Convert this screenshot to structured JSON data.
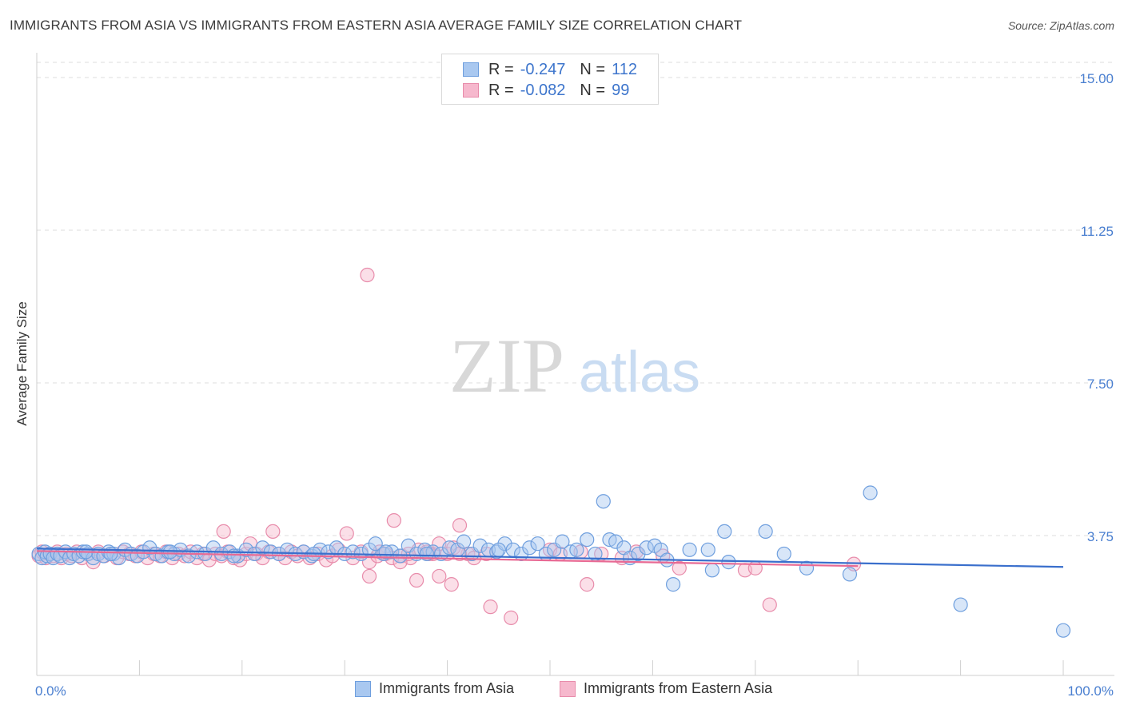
{
  "title": "IMMIGRANTS FROM ASIA VS IMMIGRANTS FROM EASTERN ASIA AVERAGE FAMILY SIZE CORRELATION CHART",
  "source": "Source: ZipAtlas.com",
  "watermark": {
    "zip": "ZIP",
    "atlas": "atlas"
  },
  "colors": {
    "blue_fill": "#a9c8f0",
    "blue_stroke": "#6f9fde",
    "blue_line": "#3a6fcc",
    "pink_fill": "#f6b8cd",
    "pink_stroke": "#e88cab",
    "pink_line": "#e86a94",
    "axis_text": "#4a7fd0",
    "grid": "#dcdcdc"
  },
  "legend": {
    "series1": {
      "r_label": "R =",
      "r_value": "-0.247",
      "n_label": "N =",
      "n_value": "112"
    },
    "series2": {
      "r_label": "R =",
      "r_value": "-0.082",
      "n_label": "N =",
      "n_value": "99"
    }
  },
  "chart_data": {
    "type": "scatter",
    "title": "IMMIGRANTS FROM ASIA VS IMMIGRANTS FROM EASTERN ASIA AVERAGE FAMILY SIZE CORRELATION CHART",
    "xlabel": "",
    "ylabel": "Average Family Size",
    "xlim": [
      0,
      100
    ],
    "ylim": [
      0,
      15.75
    ],
    "y_ticks": [
      3.75,
      7.5,
      11.25,
      15.0
    ],
    "y_tick_labels": [
      "3.75",
      "7.50",
      "11.25",
      "15.00"
    ],
    "x_tick_labels": [
      "0.0%",
      "100.0%"
    ],
    "grid": true,
    "legend_position": "top-center",
    "series": [
      {
        "name": "Immigrants from Asia",
        "color": "blue",
        "trend": {
          "x": [
            0,
            100
          ],
          "y": [
            3.43,
            2.98
          ]
        },
        "points": [
          [
            0.2,
            3.3
          ],
          [
            0.5,
            3.2
          ],
          [
            0.8,
            3.35
          ],
          [
            1.0,
            3.25
          ],
          [
            1.3,
            3.3
          ],
          [
            1.6,
            3.2
          ],
          [
            2.0,
            3.3
          ],
          [
            2.3,
            3.25
          ],
          [
            2.8,
            3.35
          ],
          [
            3.2,
            3.2
          ],
          [
            3.6,
            3.3
          ],
          [
            4.1,
            3.25
          ],
          [
            4.5,
            3.35
          ],
          [
            5.0,
            3.3
          ],
          [
            5.5,
            3.2
          ],
          [
            6.0,
            3.3
          ],
          [
            6.5,
            3.25
          ],
          [
            7.0,
            3.35
          ],
          [
            7.5,
            3.3
          ],
          [
            8.0,
            3.2
          ],
          [
            8.6,
            3.4
          ],
          [
            9.2,
            3.3
          ],
          [
            9.8,
            3.25
          ],
          [
            10.4,
            3.35
          ],
          [
            11.0,
            3.45
          ],
          [
            11.6,
            3.3
          ],
          [
            12.2,
            3.25
          ],
          [
            12.8,
            3.35
          ],
          [
            13.4,
            3.3
          ],
          [
            14.0,
            3.4
          ],
          [
            14.8,
            3.25
          ],
          [
            15.6,
            3.35
          ],
          [
            16.4,
            3.3
          ],
          [
            17.2,
            3.45
          ],
          [
            18.0,
            3.3
          ],
          [
            18.8,
            3.35
          ],
          [
            19.6,
            3.25
          ],
          [
            20.4,
            3.4
          ],
          [
            21.2,
            3.3
          ],
          [
            22.0,
            3.45
          ],
          [
            22.8,
            3.35
          ],
          [
            23.6,
            3.3
          ],
          [
            24.4,
            3.4
          ],
          [
            25.2,
            3.3
          ],
          [
            26.0,
            3.35
          ],
          [
            26.8,
            3.25
          ],
          [
            27.6,
            3.4
          ],
          [
            28.4,
            3.35
          ],
          [
            29.2,
            3.45
          ],
          [
            30.0,
            3.3
          ],
          [
            30.8,
            3.35
          ],
          [
            31.6,
            3.3
          ],
          [
            32.4,
            3.4
          ],
          [
            33.0,
            3.55
          ],
          [
            33.8,
            3.3
          ],
          [
            34.6,
            3.35
          ],
          [
            35.4,
            3.25
          ],
          [
            36.2,
            3.5
          ],
          [
            37.0,
            3.3
          ],
          [
            37.8,
            3.4
          ],
          [
            38.6,
            3.35
          ],
          [
            39.4,
            3.3
          ],
          [
            40.2,
            3.45
          ],
          [
            41.0,
            3.4
          ],
          [
            41.6,
            3.6
          ],
          [
            42.4,
            3.3
          ],
          [
            43.2,
            3.5
          ],
          [
            44.0,
            3.4
          ],
          [
            44.8,
            3.35
          ],
          [
            45.6,
            3.55
          ],
          [
            46.4,
            3.4
          ],
          [
            47.2,
            3.3
          ],
          [
            48.0,
            3.45
          ],
          [
            48.8,
            3.55
          ],
          [
            49.6,
            3.3
          ],
          [
            50.4,
            3.4
          ],
          [
            51.2,
            3.6
          ],
          [
            52.0,
            3.35
          ],
          [
            52.6,
            3.4
          ],
          [
            53.6,
            3.65
          ],
          [
            54.4,
            3.3
          ],
          [
            55.2,
            4.59
          ],
          [
            55.8,
            3.65
          ],
          [
            56.4,
            3.6
          ],
          [
            57.2,
            3.45
          ],
          [
            57.8,
            3.2
          ],
          [
            58.6,
            3.3
          ],
          [
            59.4,
            3.45
          ],
          [
            60.2,
            3.5
          ],
          [
            60.8,
            3.4
          ],
          [
            61.4,
            3.15
          ],
          [
            62.0,
            2.55
          ],
          [
            63.6,
            3.4
          ],
          [
            65.4,
            3.4
          ],
          [
            65.8,
            2.9
          ],
          [
            67.0,
            3.85
          ],
          [
            67.4,
            3.1
          ],
          [
            71.0,
            3.85
          ],
          [
            72.8,
            3.3
          ],
          [
            75.0,
            2.95
          ],
          [
            79.2,
            2.8
          ],
          [
            81.2,
            4.8
          ],
          [
            90.0,
            2.05
          ],
          [
            100.0,
            1.42
          ],
          [
            4.8,
            3.35
          ],
          [
            7.2,
            3.3
          ],
          [
            13.0,
            3.35
          ],
          [
            19.2,
            3.25
          ],
          [
            27.0,
            3.3
          ],
          [
            34.0,
            3.35
          ],
          [
            38.0,
            3.3
          ],
          [
            45.0,
            3.4
          ]
        ]
      },
      {
        "name": "Immigrants from Eastern Asia",
        "color": "pink",
        "trend": {
          "x": [
            0,
            80
          ],
          "y": [
            3.37,
            3.0
          ]
        },
        "points": [
          [
            0.2,
            3.25
          ],
          [
            0.5,
            3.35
          ],
          [
            0.9,
            3.2
          ],
          [
            1.2,
            3.3
          ],
          [
            1.6,
            3.25
          ],
          [
            2.0,
            3.35
          ],
          [
            2.4,
            3.2
          ],
          [
            2.9,
            3.3
          ],
          [
            3.4,
            3.25
          ],
          [
            3.9,
            3.35
          ],
          [
            4.4,
            3.2
          ],
          [
            5.0,
            3.3
          ],
          [
            5.5,
            3.1
          ],
          [
            6.0,
            3.35
          ],
          [
            6.6,
            3.25
          ],
          [
            7.2,
            3.3
          ],
          [
            7.8,
            3.2
          ],
          [
            8.4,
            3.35
          ],
          [
            9.0,
            3.3
          ],
          [
            9.6,
            3.25
          ],
          [
            10.2,
            3.35
          ],
          [
            10.8,
            3.2
          ],
          [
            11.4,
            3.3
          ],
          [
            12.0,
            3.25
          ],
          [
            12.6,
            3.35
          ],
          [
            13.2,
            3.2
          ],
          [
            13.8,
            3.3
          ],
          [
            14.4,
            3.25
          ],
          [
            15.0,
            3.35
          ],
          [
            15.6,
            3.2
          ],
          [
            16.2,
            3.3
          ],
          [
            16.8,
            3.15
          ],
          [
            17.4,
            3.3
          ],
          [
            18.0,
            3.25
          ],
          [
            18.6,
            3.35
          ],
          [
            18.2,
            3.85
          ],
          [
            19.2,
            3.2
          ],
          [
            19.8,
            3.15
          ],
          [
            20.4,
            3.3
          ],
          [
            20.8,
            3.55
          ],
          [
            21.4,
            3.3
          ],
          [
            22.0,
            3.2
          ],
          [
            22.6,
            3.35
          ],
          [
            23.0,
            3.85
          ],
          [
            23.6,
            3.3
          ],
          [
            24.2,
            3.2
          ],
          [
            24.8,
            3.35
          ],
          [
            25.4,
            3.25
          ],
          [
            26.0,
            3.35
          ],
          [
            26.6,
            3.2
          ],
          [
            27.4,
            3.3
          ],
          [
            28.2,
            3.15
          ],
          [
            28.8,
            3.25
          ],
          [
            29.4,
            3.4
          ],
          [
            30.2,
            3.8
          ],
          [
            30.8,
            3.2
          ],
          [
            31.6,
            3.35
          ],
          [
            32.4,
            3.1
          ],
          [
            33.2,
            3.25
          ],
          [
            34.0,
            3.3
          ],
          [
            34.8,
            4.12
          ],
          [
            35.6,
            3.25
          ],
          [
            36.4,
            3.2
          ],
          [
            37.2,
            3.4
          ],
          [
            38.0,
            3.35
          ],
          [
            38.6,
            3.3
          ],
          [
            39.2,
            3.55
          ],
          [
            40.0,
            3.3
          ],
          [
            40.6,
            3.45
          ],
          [
            41.2,
            4.0
          ],
          [
            42.0,
            3.3
          ],
          [
            32.2,
            10.15
          ],
          [
            32.4,
            2.75
          ],
          [
            33.4,
            3.35
          ],
          [
            34.6,
            3.2
          ],
          [
            35.4,
            3.1
          ],
          [
            36.2,
            3.3
          ],
          [
            37.0,
            2.65
          ],
          [
            38.2,
            3.3
          ],
          [
            39.2,
            2.75
          ],
          [
            40.4,
            2.55
          ],
          [
            41.2,
            3.3
          ],
          [
            42.6,
            3.2
          ],
          [
            43.8,
            3.3
          ],
          [
            44.2,
            2.0
          ],
          [
            46.2,
            1.73
          ],
          [
            50.0,
            3.4
          ],
          [
            51.0,
            3.3
          ],
          [
            53.0,
            3.35
          ],
          [
            53.6,
            2.55
          ],
          [
            55.0,
            3.3
          ],
          [
            57.0,
            3.2
          ],
          [
            58.4,
            3.35
          ],
          [
            61.0,
            3.25
          ],
          [
            62.6,
            2.95
          ],
          [
            69.0,
            2.9
          ],
          [
            70.0,
            2.95
          ],
          [
            71.4,
            2.05
          ],
          [
            79.6,
            3.05
          ]
        ]
      }
    ]
  },
  "bottom_legend": {
    "series1": "Immigrants from Asia",
    "series2": "Immigrants from Eastern Asia"
  },
  "y_axis_label": "Average Family Size"
}
